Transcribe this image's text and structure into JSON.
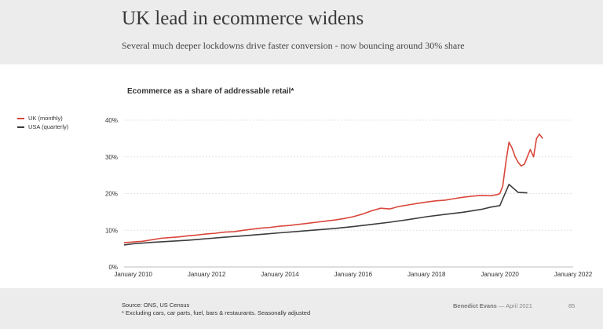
{
  "header": {
    "title": "UK lead in ecommerce widens",
    "subtitle": "Several much deeper lockdowns drive faster conversion - now bouncing around 30% share"
  },
  "footer": {
    "source": "Source: ONS, US Census",
    "note": "* Excluding cars, car parts, fuel, bars & restaurants. Seasonally adjusted",
    "author": "Benedict Evans",
    "date": "— April 2021",
    "page": "85"
  },
  "colors": {
    "uk": "#d9473b",
    "usa": "#3c3c3c",
    "grid": "#e4e4e4"
  },
  "chart_data": {
    "type": "line",
    "title": "Ecommerce as a share of addressable retail*",
    "y_ticks": [
      "0%",
      "10%",
      "20%",
      "30%",
      "40%"
    ],
    "y_tick_values": [
      0,
      10,
      20,
      30,
      40
    ],
    "x_ticks": [
      "January 2010",
      "January 2012",
      "January 2014",
      "January 2016",
      "January 2018",
      "January 2020",
      "January 2022"
    ],
    "x_tick_values": [
      2010,
      2012,
      2014,
      2016,
      2018,
      2020,
      2022
    ],
    "xlim": [
      2009.75,
      2022.0
    ],
    "ylim": [
      0,
      40
    ],
    "grid": true,
    "legend_position": "top-left",
    "series": [
      {
        "name": "UK (monthly)",
        "color": "#d9473b",
        "points": [
          [
            2009.75,
            6.6
          ],
          [
            2010.0,
            6.8
          ],
          [
            2010.25,
            7.0
          ],
          [
            2010.5,
            7.4
          ],
          [
            2010.75,
            7.8
          ],
          [
            2011.0,
            8.0
          ],
          [
            2011.25,
            8.2
          ],
          [
            2011.5,
            8.5
          ],
          [
            2011.75,
            8.7
          ],
          [
            2012.0,
            9.0
          ],
          [
            2012.25,
            9.2
          ],
          [
            2012.5,
            9.5
          ],
          [
            2012.75,
            9.6
          ],
          [
            2013.0,
            10.0
          ],
          [
            2013.25,
            10.3
          ],
          [
            2013.5,
            10.6
          ],
          [
            2013.75,
            10.8
          ],
          [
            2014.0,
            11.1
          ],
          [
            2014.25,
            11.3
          ],
          [
            2014.5,
            11.6
          ],
          [
            2014.75,
            11.9
          ],
          [
            2015.0,
            12.2
          ],
          [
            2015.25,
            12.5
          ],
          [
            2015.5,
            12.8
          ],
          [
            2015.75,
            13.2
          ],
          [
            2016.0,
            13.7
          ],
          [
            2016.25,
            14.4
          ],
          [
            2016.5,
            15.3
          ],
          [
            2016.75,
            16.0
          ],
          [
            2017.0,
            15.8
          ],
          [
            2017.25,
            16.5
          ],
          [
            2017.5,
            16.9
          ],
          [
            2017.75,
            17.3
          ],
          [
            2018.0,
            17.7
          ],
          [
            2018.25,
            18.0
          ],
          [
            2018.5,
            18.2
          ],
          [
            2018.75,
            18.6
          ],
          [
            2019.0,
            19.0
          ],
          [
            2019.25,
            19.3
          ],
          [
            2019.5,
            19.5
          ],
          [
            2019.75,
            19.4
          ],
          [
            2019.92,
            19.7
          ],
          [
            2020.0,
            20.0
          ],
          [
            2020.08,
            22.0
          ],
          [
            2020.17,
            29.0
          ],
          [
            2020.25,
            34.0
          ],
          [
            2020.33,
            32.5
          ],
          [
            2020.42,
            30.0
          ],
          [
            2020.5,
            28.5
          ],
          [
            2020.58,
            27.5
          ],
          [
            2020.67,
            28.0
          ],
          [
            2020.75,
            30.0
          ],
          [
            2020.83,
            32.0
          ],
          [
            2020.92,
            30.0
          ],
          [
            2021.0,
            35.0
          ],
          [
            2021.08,
            36.2
          ],
          [
            2021.17,
            35.0
          ]
        ]
      },
      {
        "name": "USA (quarterly)",
        "color": "#3c3c3c",
        "points": [
          [
            2009.75,
            6.0
          ],
          [
            2010.0,
            6.3
          ],
          [
            2010.5,
            6.7
          ],
          [
            2011.0,
            7.0
          ],
          [
            2011.5,
            7.3
          ],
          [
            2012.0,
            7.7
          ],
          [
            2012.5,
            8.1
          ],
          [
            2013.0,
            8.5
          ],
          [
            2013.5,
            8.9
          ],
          [
            2014.0,
            9.3
          ],
          [
            2014.5,
            9.7
          ],
          [
            2015.0,
            10.1
          ],
          [
            2015.5,
            10.5
          ],
          [
            2016.0,
            11.0
          ],
          [
            2016.5,
            11.6
          ],
          [
            2017.0,
            12.2
          ],
          [
            2017.5,
            12.9
          ],
          [
            2018.0,
            13.7
          ],
          [
            2018.5,
            14.3
          ],
          [
            2019.0,
            14.9
          ],
          [
            2019.5,
            15.7
          ],
          [
            2019.75,
            16.3
          ],
          [
            2020.0,
            16.7
          ],
          [
            2020.25,
            22.5
          ],
          [
            2020.5,
            20.3
          ],
          [
            2020.75,
            20.2
          ]
        ]
      }
    ]
  }
}
